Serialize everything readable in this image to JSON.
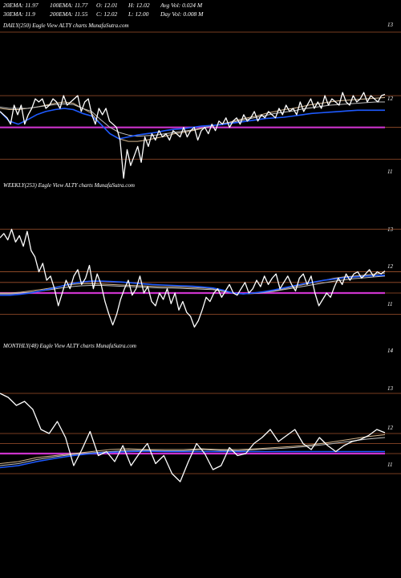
{
  "header": {
    "row1": [
      {
        "label": "20EMA:",
        "value": "11.97"
      },
      {
        "label": "100EMA:",
        "value": "11.77"
      },
      {
        "label": "O:",
        "value": "12.01"
      },
      {
        "label": "H:",
        "value": "12.02"
      },
      {
        "label": "Avg Vol:",
        "value": "0.024",
        "unit": "M"
      }
    ],
    "row2": [
      {
        "label": "30EMA:",
        "value": "11.9"
      },
      {
        "label": "200EMA:",
        "value": "11.55"
      },
      {
        "label": "C:",
        "value": "12.02"
      },
      {
        "label": "L:",
        "value": "12.00"
      },
      {
        "label": "Day Vol:",
        "value": "0.008",
        "unit": "M"
      }
    ]
  },
  "panels": [
    {
      "title": "DAILY(250) Eagle  View  ALTY charts MunafaSutra.com",
      "tick_labels": [
        "13",
        "12",
        "11"
      ]
    },
    {
      "title": "WEEKLY(253) Eagle  View  ALTY charts MunafaSutra.com",
      "tick_labels": [
        "13",
        "12",
        "11"
      ]
    },
    {
      "title": "MONTHLY(48) Eagle  View  ALTY charts MunafaSutra.com",
      "tick_labels": [
        "14",
        "13",
        "12",
        "11"
      ]
    }
  ],
  "colors": {
    "background": "#000000",
    "grid": "#a0522d",
    "price": "#ffffff",
    "ema_short": "#d2b48c",
    "ema_mid": "#c0c0c0",
    "ema_long": "#1e5aff",
    "support": "#cc33cc"
  },
  "chart_data": [
    {
      "type": "line",
      "timeframe": "daily",
      "ylim": [
        10.7,
        13.0
      ],
      "gridlines": [
        13,
        12,
        11.5,
        11
      ],
      "support_level": 11.5,
      "series": [
        {
          "role": "price",
          "values": [
            11.75,
            11.7,
            11.65,
            11.55,
            11.85,
            11.7,
            11.85,
            11.55,
            11.7,
            11.8,
            11.95,
            11.9,
            11.95,
            11.8,
            11.85,
            11.95,
            11.9,
            11.8,
            12.0,
            11.85,
            11.9,
            11.95,
            12.0,
            11.75,
            11.9,
            11.95,
            11.7,
            11.55,
            11.8,
            11.7,
            11.8,
            11.6,
            11.55,
            11.5,
            11.3,
            10.7,
            11.15,
            10.9,
            11.05,
            11.2,
            10.95,
            11.35,
            11.2,
            11.4,
            11.3,
            11.45,
            11.35,
            11.4,
            11.3,
            11.45,
            11.4,
            11.35,
            11.5,
            11.35,
            11.45,
            11.5,
            11.3,
            11.45,
            11.5,
            11.4,
            11.55,
            11.45,
            11.6,
            11.55,
            11.65,
            11.5,
            11.6,
            11.65,
            11.55,
            11.7,
            11.6,
            11.65,
            11.75,
            11.6,
            11.7,
            11.65,
            11.75,
            11.7,
            11.65,
            11.8,
            11.7,
            11.85,
            11.75,
            11.8,
            11.7,
            11.9,
            11.75,
            11.85,
            11.95,
            11.8,
            11.9,
            11.8,
            12.0,
            11.85,
            11.95,
            11.9,
            11.85,
            12.05,
            11.9,
            11.85,
            12.0,
            11.9,
            11.95,
            12.05,
            11.9,
            12.0,
            11.95,
            11.9,
            12.0,
            12.02
          ]
        },
        {
          "role": "ema_short",
          "values": [
            11.8,
            11.78,
            11.78,
            11.8,
            11.82,
            11.85,
            11.88,
            11.9,
            11.88,
            11.8,
            11.72,
            11.55,
            11.4,
            11.32,
            11.28,
            11.28,
            11.3,
            11.33,
            11.36,
            11.4,
            11.42,
            11.45,
            11.48,
            11.52,
            11.55,
            11.58,
            11.62,
            11.65,
            11.68,
            11.72,
            11.75,
            11.78,
            11.8,
            11.83,
            11.86,
            11.88,
            11.9,
            11.92,
            11.93,
            11.94,
            11.95,
            11.96,
            11.97
          ]
        },
        {
          "role": "ema_mid",
          "values": [
            11.82,
            11.8,
            11.8,
            11.8,
            11.82,
            11.84,
            11.86,
            11.87,
            11.86,
            11.8,
            11.75,
            11.62,
            11.5,
            11.42,
            11.38,
            11.36,
            11.37,
            11.38,
            11.4,
            11.42,
            11.44,
            11.46,
            11.49,
            11.52,
            11.55,
            11.57,
            11.6,
            11.63,
            11.66,
            11.69,
            11.72,
            11.74,
            11.76,
            11.79,
            11.81,
            11.83,
            11.85,
            11.86,
            11.87,
            11.88,
            11.89,
            11.9,
            11.9
          ]
        },
        {
          "role": "ema_long",
          "values": [
            11.75,
            11.6,
            11.55,
            11.62,
            11.7,
            11.75,
            11.78,
            11.8,
            11.78,
            11.72,
            11.68,
            11.55,
            11.4,
            11.32,
            11.35,
            11.38,
            11.4,
            11.42,
            11.45,
            11.47,
            11.48,
            11.5,
            11.52,
            11.53,
            11.54,
            11.56,
            11.58,
            11.6,
            11.62,
            11.64,
            11.65,
            11.66,
            11.68,
            11.7,
            11.72,
            11.73,
            11.74,
            11.75,
            11.76,
            11.77,
            11.77,
            11.77,
            11.77
          ]
        }
      ]
    },
    {
      "type": "line",
      "timeframe": "weekly",
      "ylim": [
        10.5,
        13.2
      ],
      "gridlines": [
        13,
        12,
        11.75,
        11.5,
        11
      ],
      "support_level": 11.5,
      "series": [
        {
          "role": "price",
          "values": [
            12.8,
            12.9,
            12.75,
            13.0,
            12.7,
            12.85,
            12.6,
            12.95,
            12.5,
            12.35,
            12.0,
            12.2,
            11.8,
            11.9,
            11.6,
            11.2,
            11.5,
            11.8,
            11.6,
            11.9,
            12.05,
            11.7,
            11.85,
            12.15,
            11.6,
            11.95,
            11.7,
            11.3,
            11.0,
            10.75,
            11.0,
            11.35,
            11.6,
            11.8,
            11.45,
            11.6,
            11.9,
            11.5,
            11.65,
            11.3,
            11.2,
            11.5,
            11.35,
            11.6,
            11.25,
            11.5,
            11.1,
            11.3,
            11.05,
            10.95,
            10.7,
            10.85,
            11.1,
            11.4,
            11.3,
            11.5,
            11.6,
            11.4,
            11.55,
            11.7,
            11.5,
            11.45,
            11.6,
            11.75,
            11.5,
            11.6,
            11.8,
            11.65,
            11.9,
            11.7,
            11.85,
            11.95,
            11.6,
            11.75,
            11.9,
            11.7,
            11.55,
            11.85,
            11.95,
            11.7,
            11.9,
            11.5,
            11.2,
            11.35,
            11.5,
            11.4,
            11.65,
            11.85,
            11.7,
            11.95,
            11.8,
            11.95,
            12.0,
            11.85,
            11.95,
            12.05,
            11.9,
            12.0,
            11.95,
            12.02
          ]
        },
        {
          "role": "ema_short",
          "values": [
            11.5,
            11.5,
            11.52,
            11.55,
            11.58,
            11.62,
            11.66,
            11.7,
            11.72,
            11.72,
            11.71,
            11.7,
            11.69,
            11.68,
            11.67,
            11.66,
            11.65,
            11.65,
            11.64,
            11.63,
            11.62,
            11.6,
            11.55,
            11.5,
            11.48,
            11.5,
            11.52,
            11.55,
            11.6,
            11.65,
            11.7,
            11.75,
            11.8,
            11.85,
            11.88,
            11.9,
            11.92,
            11.95,
            11.97
          ]
        },
        {
          "role": "ema_mid",
          "values": [
            11.48,
            11.48,
            11.5,
            11.52,
            11.55,
            11.58,
            11.62,
            11.65,
            11.67,
            11.68,
            11.68,
            11.67,
            11.66,
            11.65,
            11.64,
            11.63,
            11.62,
            11.62,
            11.61,
            11.6,
            11.59,
            11.58,
            11.54,
            11.5,
            11.48,
            11.49,
            11.51,
            11.54,
            11.58,
            11.62,
            11.66,
            11.7,
            11.74,
            11.78,
            11.81,
            11.84,
            11.86,
            11.88,
            11.9
          ]
        },
        {
          "role": "ema_long",
          "values": [
            11.45,
            11.45,
            11.47,
            11.5,
            11.55,
            11.6,
            11.66,
            11.72,
            11.76,
            11.78,
            11.78,
            11.77,
            11.76,
            11.74,
            11.72,
            11.7,
            11.69,
            11.68,
            11.67,
            11.66,
            11.64,
            11.62,
            11.57,
            11.5,
            11.48,
            11.5,
            11.53,
            11.57,
            11.62,
            11.67,
            11.72,
            11.76,
            11.8,
            11.83,
            11.86,
            11.88,
            11.9,
            11.91,
            11.92
          ]
        }
      ]
    },
    {
      "type": "line",
      "timeframe": "monthly",
      "ylim": [
        10.4,
        14.0
      ],
      "gridlines": [
        13,
        12,
        11.75,
        11.5,
        11
      ],
      "support_level": 11.5,
      "series": [
        {
          "role": "price",
          "values": [
            13.0,
            12.9,
            12.7,
            12.8,
            12.6,
            12.1,
            12.0,
            12.3,
            11.9,
            11.2,
            11.6,
            12.05,
            11.45,
            11.55,
            11.3,
            11.7,
            11.2,
            11.5,
            11.75,
            11.25,
            11.45,
            11.0,
            10.8,
            11.3,
            11.75,
            11.5,
            11.1,
            11.2,
            11.65,
            11.45,
            11.5,
            11.75,
            11.9,
            12.1,
            11.8,
            11.95,
            12.1,
            11.75,
            11.6,
            11.9,
            11.7,
            11.55,
            11.7,
            11.8,
            11.85,
            11.95,
            12.1,
            12.02
          ]
        },
        {
          "role": "ema_short",
          "values": [
            11.25,
            11.3,
            11.4,
            11.45,
            11.5,
            11.55,
            11.6,
            11.62,
            11.6,
            11.6,
            11.6,
            11.62,
            11.6,
            11.6,
            11.62,
            11.65,
            11.68,
            11.72,
            11.78,
            11.85,
            11.92,
            11.97
          ]
        },
        {
          "role": "ema_mid",
          "values": [
            11.2,
            11.25,
            11.35,
            11.42,
            11.48,
            11.52,
            11.55,
            11.58,
            11.58,
            11.57,
            11.57,
            11.6,
            11.58,
            11.57,
            11.6,
            11.62,
            11.65,
            11.69,
            11.74,
            11.8,
            11.86,
            11.9
          ]
        },
        {
          "role": "ema_long",
          "values": [
            11.15,
            11.2,
            11.3,
            11.38,
            11.45,
            11.5,
            11.53,
            11.55,
            11.56,
            11.55,
            11.55,
            11.55,
            11.55,
            11.55,
            11.55,
            11.55,
            11.55,
            11.55,
            11.55,
            11.55,
            11.55,
            11.55
          ]
        }
      ]
    }
  ]
}
